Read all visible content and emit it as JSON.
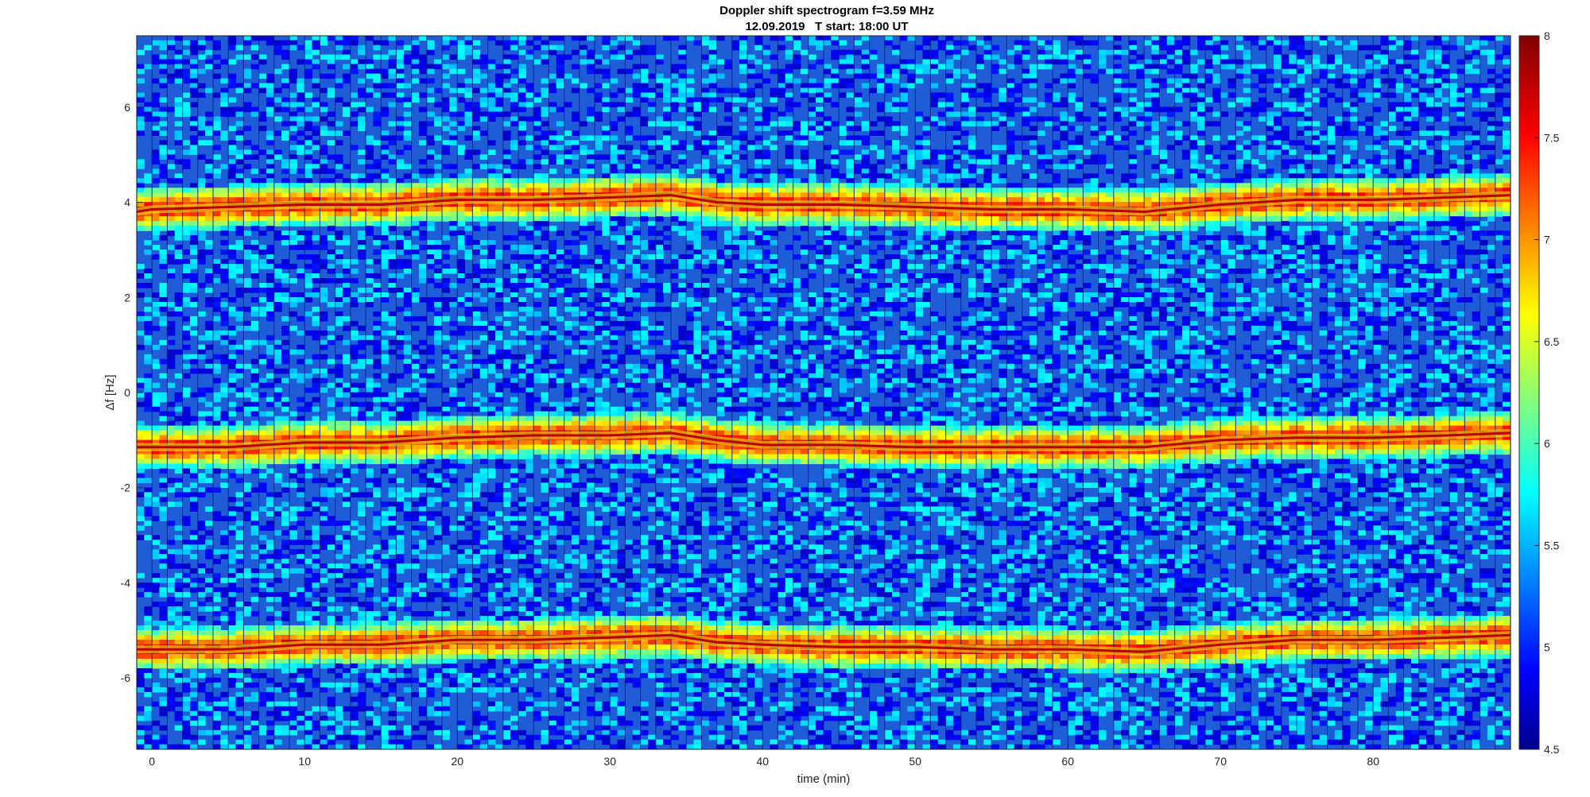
{
  "chart_data": {
    "type": "heatmap",
    "title": "Doppler shift spectrogram f=3.59 MHz",
    "subtitle": "12.09.2019   T start: 18:00 UT",
    "xlabel": "time (min)",
    "ylabel": "Δf [Hz]",
    "xlim": [
      -1,
      89
    ],
    "ylim": [
      -7.5,
      7.5
    ],
    "x_ticks": [
      "0",
      "10",
      "20",
      "30",
      "40",
      "50",
      "60",
      "70",
      "80"
    ],
    "x_tick_values": [
      0,
      10,
      20,
      30,
      40,
      50,
      60,
      70,
      80
    ],
    "y_ticks": [
      "6",
      "4",
      "2",
      "0",
      "-2",
      "-4",
      "-6"
    ],
    "y_tick_values": [
      6,
      4,
      2,
      0,
      -2,
      -4,
      -6
    ],
    "colorbar": {
      "colormap": "jet",
      "min": 4.5,
      "max": 8,
      "ticks": [
        "8",
        "7.5",
        "7",
        "6.5",
        "6",
        "5.5",
        "5",
        "4.5"
      ],
      "tick_values": [
        8,
        7.5,
        7,
        6.5,
        6,
        5.5,
        5,
        4.5
      ]
    },
    "background_level": 5.3,
    "segment_length_min": 1,
    "series": [
      {
        "time_min": [
          -1,
          0,
          5,
          10,
          15,
          20,
          25,
          30,
          34,
          37,
          40,
          45,
          50,
          55,
          60,
          65,
          70,
          75,
          80,
          85,
          89
        ],
        "doppler_hz": [
          3.8,
          3.85,
          3.9,
          3.95,
          3.95,
          4.05,
          4.05,
          4.1,
          4.15,
          4.0,
          3.95,
          3.95,
          3.9,
          3.85,
          3.85,
          3.8,
          3.95,
          4.05,
          4.05,
          4.1,
          4.15
        ],
        "peak_level": 7.8
      },
      {
        "time_min": [
          -1,
          0,
          5,
          10,
          15,
          20,
          25,
          30,
          34,
          37,
          40,
          45,
          50,
          55,
          60,
          65,
          70,
          75,
          80,
          85,
          89
        ],
        "doppler_hz": [
          -1.15,
          -1.15,
          -1.15,
          -1.05,
          -1.05,
          -0.95,
          -0.9,
          -0.9,
          -0.85,
          -1.0,
          -1.1,
          -1.1,
          -1.15,
          -1.15,
          -1.15,
          -1.15,
          -1.0,
          -0.95,
          -0.95,
          -0.9,
          -0.85
        ],
        "peak_level": 7.8
      },
      {
        "time_min": [
          -1,
          0,
          5,
          10,
          15,
          20,
          25,
          30,
          34,
          37,
          40,
          45,
          50,
          55,
          60,
          65,
          70,
          75,
          80,
          85,
          89
        ],
        "doppler_hz": [
          -5.4,
          -5.4,
          -5.4,
          -5.3,
          -5.3,
          -5.2,
          -5.2,
          -5.15,
          -5.1,
          -5.25,
          -5.3,
          -5.35,
          -5.35,
          -5.4,
          -5.4,
          -5.45,
          -5.3,
          -5.2,
          -5.2,
          -5.15,
          -5.1
        ],
        "peak_level": 7.8
      }
    ]
  }
}
